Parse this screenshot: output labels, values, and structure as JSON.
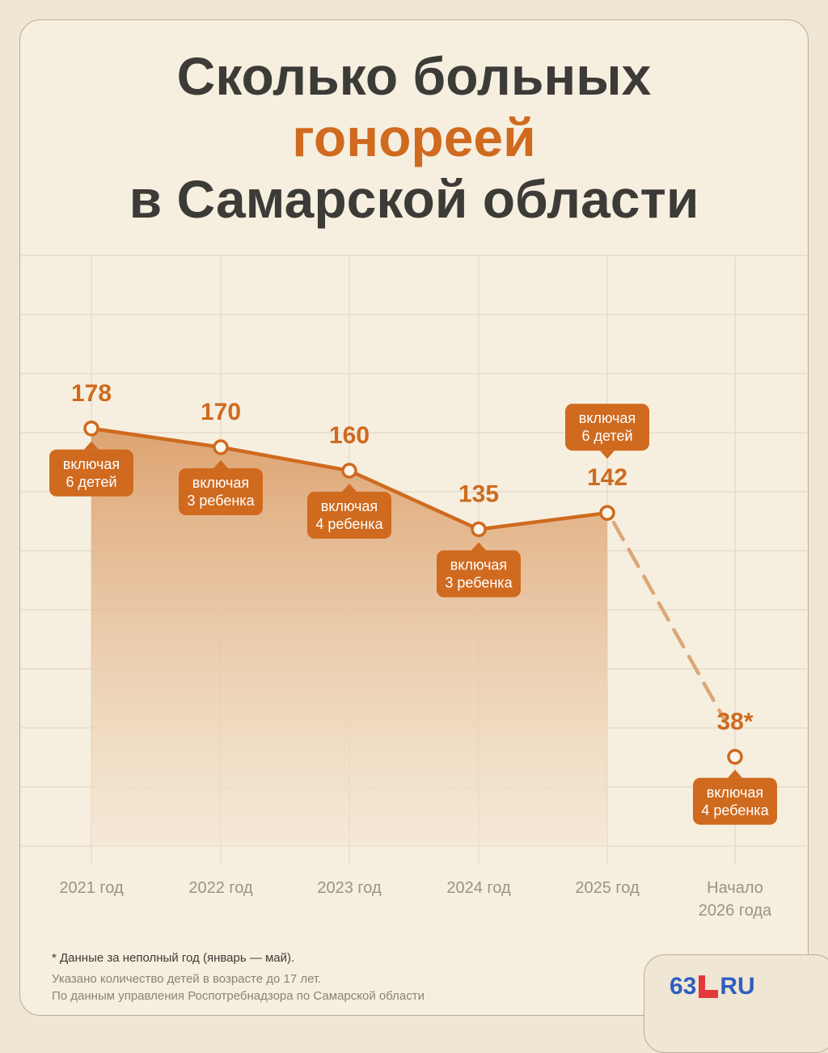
{
  "title": {
    "line1": "Сколько больных",
    "line2": "гонореей",
    "line3": "в Самарской области"
  },
  "colors": {
    "accent": "#cf6a1f",
    "text": "#3d3b37",
    "background": "#f6efdf",
    "grid": "#e6dccb",
    "axis_label": "#9a9386",
    "brand": "#2f5fbf",
    "brand_mark": "#e23a3a"
  },
  "chart_data": {
    "type": "line",
    "title": "Сколько больных гонореей в Самарской области",
    "categories": [
      "2021 год",
      "2022 год",
      "2023 год",
      "2024 год",
      "2025 год",
      "Начало 2026 года"
    ],
    "series": [
      {
        "values": [
          178,
          170,
          160,
          135,
          142,
          38
        ],
        "value_labels": [
          "178",
          "170",
          "160",
          "135",
          "142",
          "38*"
        ],
        "annotations": [
          "включая 6 детей",
          "включая 3 ребенка",
          "включая 4 ребенка",
          "включая 3 ребенка",
          "включая 6 детей",
          "включая 4 ребенка"
        ],
        "note": "last segment dashed; area filled under 2021–2025"
      }
    ],
    "grid": true
  },
  "footnote": "* Данные за неполный год (январь — май).",
  "source": {
    "line1": "Указано количество детей в возрасте до 17 лет.",
    "line2": "По данным управления Роспотребнадзора по Самарской области"
  },
  "logo": {
    "left": "63",
    "right": "RU"
  }
}
